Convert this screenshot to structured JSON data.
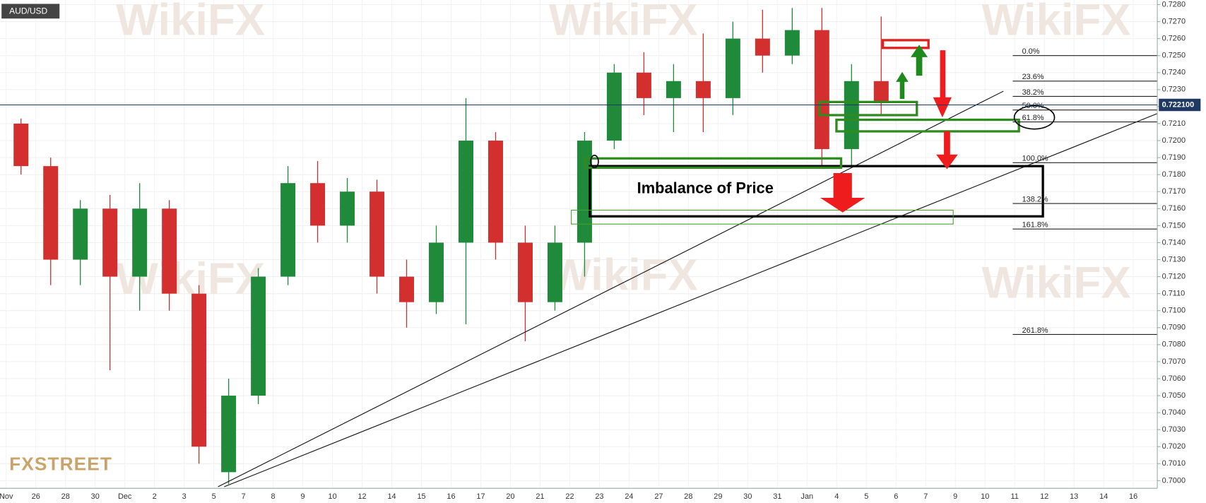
{
  "chart_data": {
    "type": "candlestick",
    "symbol": "AUD/USD",
    "logo": "FXSTREET",
    "watermark": "WikiFX",
    "annotation": "Imbalance of Price",
    "up_color": "#1f8a3a",
    "down_color": "#d32f2f",
    "grid": true,
    "categories": [
      "Nov",
      "26",
      "28",
      "30",
      "Dec",
      "2",
      "3",
      "5",
      "7",
      "8",
      "9",
      "10",
      "12",
      "14",
      "15",
      "16",
      "17",
      "20",
      "21",
      "22",
      "23",
      "24",
      "27",
      "28",
      "29",
      "30",
      "31",
      "Jan",
      "4",
      "5",
      "6",
      "7",
      "9",
      "10",
      "11",
      "12",
      "13",
      "14",
      "16"
    ],
    "open": [
      0.721,
      0.7185,
      0.713,
      0.716,
      0.712,
      0.716,
      0.711,
      0.7005,
      0.705,
      0.712,
      0.7175,
      0.715,
      0.717,
      0.712,
      0.7105,
      0.714,
      0.72,
      0.714,
      0.7105,
      0.714,
      0.72,
      0.724,
      0.7225,
      0.7235,
      0.7225,
      0.726,
      0.725,
      0.7265,
      0.7195,
      0.7235,
      null,
      null,
      null,
      null,
      null,
      null,
      null,
      null,
      null
    ],
    "high": [
      0.7213,
      0.719,
      0.7165,
      0.7168,
      0.7175,
      0.7165,
      0.7115,
      0.706,
      0.7125,
      0.7185,
      0.7188,
      0.7178,
      0.7177,
      0.713,
      0.715,
      0.7225,
      0.7205,
      0.715,
      0.715,
      0.7205,
      0.7245,
      0.7252,
      0.7245,
      0.7263,
      0.727,
      0.7277,
      0.7278,
      0.7278,
      0.7245,
      0.7273,
      null,
      null,
      null,
      null,
      null,
      null,
      null,
      null,
      null
    ],
    "low": [
      0.718,
      0.7115,
      0.7115,
      0.7065,
      0.71,
      0.71,
      0.701,
      0.6998,
      0.7045,
      0.7115,
      0.714,
      0.714,
      0.711,
      0.709,
      0.7098,
      0.7092,
      0.713,
      0.7082,
      0.71,
      0.712,
      0.7195,
      0.7215,
      0.7205,
      0.7205,
      0.7215,
      0.724,
      0.7245,
      0.7185,
      0.7185,
      0.7215,
      null,
      null,
      null,
      null,
      null,
      null,
      null,
      null,
      null
    ],
    "close": [
      0.7185,
      0.713,
      0.716,
      0.712,
      0.716,
      0.711,
      0.702,
      0.705,
      0.712,
      0.7175,
      0.715,
      0.717,
      0.712,
      0.7105,
      0.714,
      0.72,
      0.714,
      0.7105,
      0.714,
      0.72,
      0.724,
      0.7225,
      0.7235,
      0.7225,
      0.726,
      0.725,
      0.7265,
      0.7195,
      0.7235,
      0.7222,
      null,
      null,
      null,
      null,
      null,
      null,
      null,
      null,
      null
    ],
    "ylim": [
      0.69955,
      0.72827
    ],
    "yticks": [
      {
        "value": 0.7,
        "label": "0.7000"
      },
      {
        "value": 0.701,
        "label": "0.7010"
      },
      {
        "value": 0.702,
        "label": "0.7020"
      },
      {
        "value": 0.703,
        "label": "0.7030"
      },
      {
        "value": 0.704,
        "label": "0.7040"
      },
      {
        "value": 0.705,
        "label": "0.7050"
      },
      {
        "value": 0.706,
        "label": "0.7060"
      },
      {
        "value": 0.707,
        "label": "0.7070"
      },
      {
        "value": 0.708,
        "label": "0.7080"
      },
      {
        "value": 0.709,
        "label": "0.7090"
      },
      {
        "value": 0.71,
        "label": "0.7100"
      },
      {
        "value": 0.711,
        "label": "0.7110"
      },
      {
        "value": 0.712,
        "label": "0.7120"
      },
      {
        "value": 0.713,
        "label": "0.7130"
      },
      {
        "value": 0.714,
        "label": "0.7140"
      },
      {
        "value": 0.715,
        "label": "0.7150"
      },
      {
        "value": 0.716,
        "label": "0.7160"
      },
      {
        "value": 0.717,
        "label": "0.7170"
      },
      {
        "value": 0.718,
        "label": "0.7180"
      },
      {
        "value": 0.719,
        "label": "0.7190"
      },
      {
        "value": 0.72,
        "label": "0.7200"
      },
      {
        "value": 0.721,
        "label": "0.7210"
      },
      {
        "value": 0.722,
        "label": "0.7220"
      },
      {
        "value": 0.723,
        "label": "0.7230"
      },
      {
        "value": 0.724,
        "label": "0.7240"
      },
      {
        "value": 0.725,
        "label": "0.7250"
      },
      {
        "value": 0.726,
        "label": "0.7260"
      },
      {
        "value": 0.727,
        "label": "0.7270"
      },
      {
        "value": 0.728,
        "label": "0.7280"
      }
    ],
    "last_price": {
      "value": 0.7221,
      "label": "0.722100"
    },
    "fib_levels": [
      {
        "label": "0.0%",
        "value": 0.725
      },
      {
        "label": "23.6%",
        "value": 0.7235
      },
      {
        "label": "38.2%",
        "value": 0.7226
      },
      {
        "label": "50.0%",
        "value": 0.7218
      },
      {
        "label": "61.8%",
        "value": 0.7211
      },
      {
        "label": "100.0%",
        "value": 0.7187
      },
      {
        "label": "138.2%",
        "value": 0.7163
      },
      {
        "label": "161.8%",
        "value": 0.7148
      },
      {
        "label": "261.8%",
        "value": 0.7086
      }
    ]
  }
}
